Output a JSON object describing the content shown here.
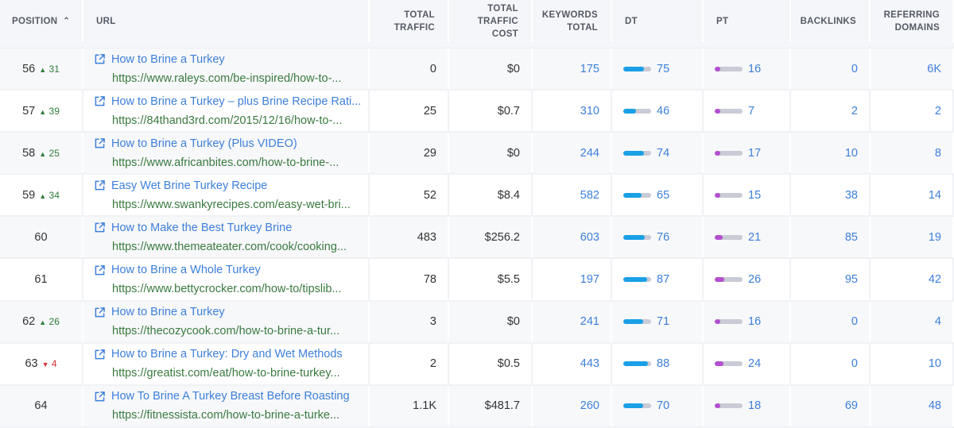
{
  "colors": {
    "dt_bar": "#1aa0e6",
    "pt_bar": "#b44fd0",
    "bar_track": "#c9cbd6",
    "link": "#3d7fd9",
    "url": "#3a7a3f",
    "up": "#2e7d3a",
    "down": "#d9323b"
  },
  "headers": {
    "position": "POSITION",
    "sort_icon": "^",
    "url": "URL",
    "total_traffic": "TOTAL TRAFFIC",
    "total_traffic_cost": "TOTAL TRAFFIC COST",
    "keywords_total": "KEYWORDS TOTAL",
    "dt": "DT",
    "pt": "PT",
    "backlinks": "BACKLINKS",
    "referring_domains": "REFERRING DOMAINS"
  },
  "rows": [
    {
      "position": "56",
      "change": "31",
      "dir": "up",
      "title": "How to Brine a Turkey",
      "url": "https://www.raleys.com/be-inspired/how-to-...",
      "traffic": "0",
      "cost": "$0",
      "keywords": "175",
      "dt": 75,
      "pt": 16,
      "backlinks": "0",
      "domains": "6K"
    },
    {
      "position": "57",
      "change": "39",
      "dir": "up",
      "title": "How to Brine a Turkey – plus Brine Recipe Rati...",
      "url": "https://84thand3rd.com/2015/12/16/how-to-...",
      "traffic": "25",
      "cost": "$0.7",
      "keywords": "310",
      "dt": 46,
      "pt": 7,
      "backlinks": "2",
      "domains": "2"
    },
    {
      "position": "58",
      "change": "25",
      "dir": "up",
      "title": "How to Brine a Turkey (Plus VIDEO)",
      "url": "https://www.africanbites.com/how-to-brine-...",
      "traffic": "29",
      "cost": "$0",
      "keywords": "244",
      "dt": 74,
      "pt": 17,
      "backlinks": "10",
      "domains": "8"
    },
    {
      "position": "59",
      "change": "34",
      "dir": "up",
      "title": "Easy Wet Brine Turkey Recipe",
      "url": "https://www.swankyrecipes.com/easy-wet-bri...",
      "traffic": "52",
      "cost": "$8.4",
      "keywords": "582",
      "dt": 65,
      "pt": 15,
      "backlinks": "38",
      "domains": "14"
    },
    {
      "position": "60",
      "change": "",
      "dir": "",
      "title": "How to Make the Best Turkey Brine",
      "url": "https://www.themeateater.com/cook/cooking...",
      "traffic": "483",
      "cost": "$256.2",
      "keywords": "603",
      "dt": 76,
      "pt": 21,
      "backlinks": "85",
      "domains": "19"
    },
    {
      "position": "61",
      "change": "",
      "dir": "",
      "title": "How to Brine a Whole Turkey",
      "url": "https://www.bettycrocker.com/how-to/tipslib...",
      "traffic": "78",
      "cost": "$5.5",
      "keywords": "197",
      "dt": 87,
      "pt": 26,
      "backlinks": "95",
      "domains": "42"
    },
    {
      "position": "62",
      "change": "26",
      "dir": "up",
      "title": "How to Brine a Turkey",
      "url": "https://thecozycook.com/how-to-brine-a-tur...",
      "traffic": "3",
      "cost": "$0",
      "keywords": "241",
      "dt": 71,
      "pt": 16,
      "backlinks": "0",
      "domains": "4"
    },
    {
      "position": "63",
      "change": "4",
      "dir": "down",
      "title": "How to Brine a Turkey: Dry and Wet Methods",
      "url": "https://greatist.com/eat/how-to-brine-turkey...",
      "traffic": "2",
      "cost": "$0.5",
      "keywords": "443",
      "dt": 88,
      "pt": 24,
      "backlinks": "0",
      "domains": "10"
    },
    {
      "position": "64",
      "change": "",
      "dir": "",
      "title": "How To Brine A Turkey Breast Before Roasting",
      "url": "https://fitnessista.com/how-to-brine-a-turke...",
      "traffic": "1.1K",
      "cost": "$481.7",
      "keywords": "260",
      "dt": 70,
      "pt": 18,
      "backlinks": "69",
      "domains": "48"
    }
  ]
}
